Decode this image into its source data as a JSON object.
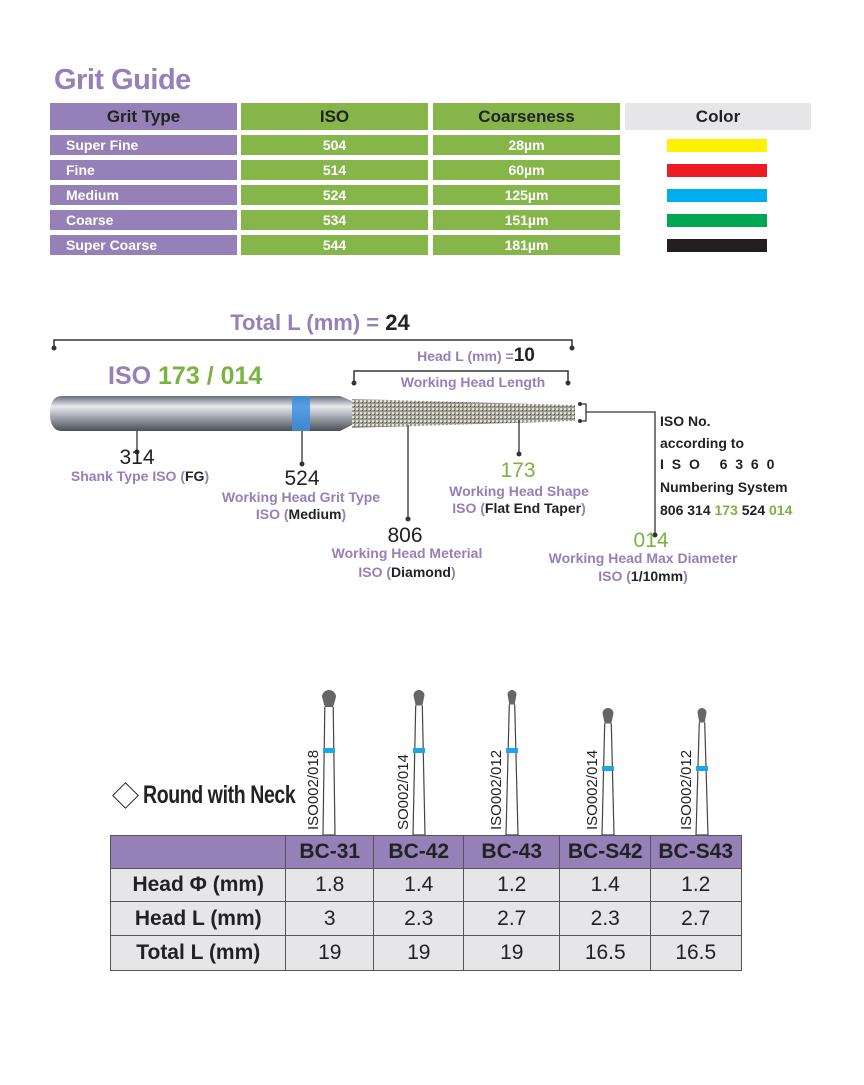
{
  "grit_guide": {
    "title": "Grit Guide",
    "headers": [
      "Grit Type",
      "ISO",
      "Coarseness",
      "Color"
    ],
    "rows": [
      {
        "type": "Super Fine",
        "iso": "504",
        "coarseness": "28µm",
        "color": "#fff200"
      },
      {
        "type": "Fine",
        "iso": "514",
        "coarseness": "60µm",
        "color": "#ed1c24"
      },
      {
        "type": "Medium",
        "iso": "524",
        "coarseness": "125µm",
        "color": "#00aeef"
      },
      {
        "type": "Coarse",
        "iso": "534",
        "coarseness": "151µm",
        "color": "#00a651"
      },
      {
        "type": "Super Coarse",
        "iso": "544",
        "coarseness": "181µm",
        "color": "#231f20"
      }
    ]
  },
  "diagram": {
    "total_label": "Total L (mm) =",
    "total_value": "24",
    "head_label": "Head L (mm) =",
    "head_value": "10",
    "working_head_length": "Working Head Length",
    "iso_prefix": "ISO",
    "iso_shape": "173",
    "iso_sep": "/",
    "iso_diam": "014",
    "shank": {
      "num": "314",
      "label": "Shank Type ISO (",
      "paren": "FG",
      "close": ")"
    },
    "grit": {
      "num": "524",
      "label": "Working Head Grit Type",
      "iso": "ISO (",
      "paren": "Medium",
      "close": ")"
    },
    "material": {
      "num": "806",
      "label": "Working Head Meterial",
      "iso": "ISO (",
      "paren": "Diamond",
      "close": ")"
    },
    "shape": {
      "num": "173",
      "label": "Working Head Shape",
      "iso": "ISO (",
      "paren": "Flat End Taper",
      "close": ")"
    },
    "diameter": {
      "num": "014",
      "label": "Working Head Max Diameter",
      "iso": "ISO (",
      "paren": "1/10mm",
      "close": ")"
    },
    "iso_no": [
      "ISO No.",
      "according to",
      "I S O   6 3 6 0",
      "Numbering System"
    ],
    "code": [
      "806 314",
      "173",
      "524",
      "014"
    ]
  },
  "round_with_neck": {
    "title": "Round with Neck",
    "products": [
      {
        "code": "BC-31",
        "iso": "ISO002/018",
        "head_d": "1.8",
        "head_l": "3",
        "total_l": "19"
      },
      {
        "code": "BC-42",
        "iso": "SO002/014",
        "head_d": "1.4",
        "head_l": "2.3",
        "total_l": "19"
      },
      {
        "code": "BC-43",
        "iso": "ISO002/012",
        "head_d": "1.2",
        "head_l": "2.7",
        "total_l": "19"
      },
      {
        "code": "BC-S42",
        "iso": "ISO002/014",
        "head_d": "1.4",
        "head_l": "2.3",
        "total_l": "16.5"
      },
      {
        "code": "BC-S43",
        "iso": "ISO002/012",
        "head_d": "1.2",
        "head_l": "2.7",
        "total_l": "16.5"
      }
    ],
    "row_labels": [
      "Head Φ (mm)",
      "Head L (mm)",
      "Total L (mm)"
    ]
  }
}
